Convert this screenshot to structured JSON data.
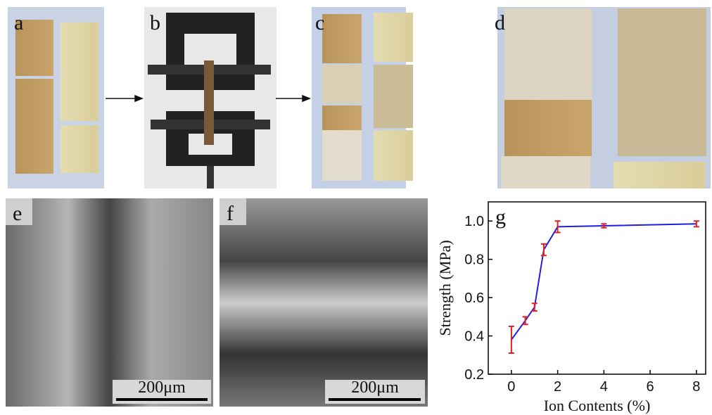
{
  "panels": {
    "a": "a",
    "b": "b",
    "c": "c",
    "d": "d",
    "e": "e",
    "f": "f",
    "g": "g"
  },
  "scale_bars": {
    "e": "200μm",
    "f": "200μm"
  },
  "chart_data": {
    "type": "line",
    "xlabel": "Ion Contents (%)",
    "ylabel": "Strength (MPa)",
    "x": [
      0,
      0.6,
      1,
      1.4,
      2,
      4,
      8
    ],
    "series": [
      {
        "color": "#1f1fe0",
        "error_color": "#e02020",
        "values": [
          0.38,
          0.48,
          0.55,
          0.85,
          0.97,
          0.975,
          0.985
        ],
        "errors": [
          0.07,
          0.02,
          0.02,
          0.03,
          0.03,
          0.01,
          0.015
        ]
      }
    ],
    "xlim": [
      -1,
      8.4
    ],
    "ylim": [
      0.2,
      1.1
    ],
    "xticks": [
      0,
      2,
      4,
      6,
      8
    ],
    "yticks": [
      0.2,
      0.4,
      0.6,
      0.8,
      {
        "value": 1,
        "label": "1.0"
      }
    ]
  }
}
